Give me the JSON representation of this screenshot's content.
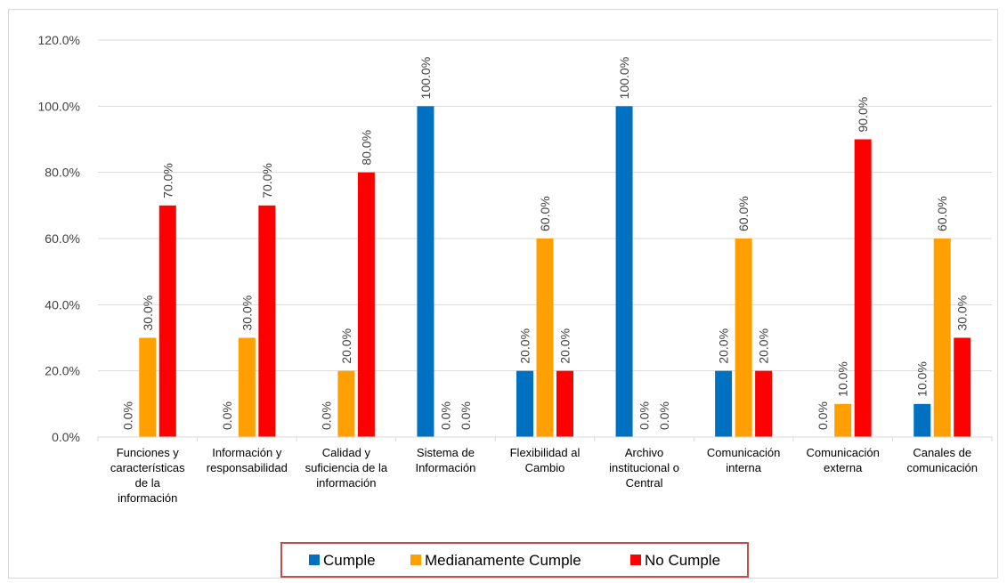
{
  "chart_data": {
    "type": "bar",
    "title": "",
    "xlabel": "",
    "ylabel": "",
    "ylim": [
      0,
      120
    ],
    "y_ticks": [
      "0.0%",
      "20.0%",
      "40.0%",
      "60.0%",
      "80.0%",
      "100.0%",
      "120.0%"
    ],
    "grid": true,
    "legend_position": "bottom",
    "categories": [
      [
        "Funciones y",
        "características",
        "de la",
        "información"
      ],
      [
        "Información y",
        "responsabilidad"
      ],
      [
        "Calidad y",
        "suficiencia de la",
        "información"
      ],
      [
        "Sistema de",
        "Información"
      ],
      [
        "Flexibilidad al",
        "Cambio"
      ],
      [
        "Archivo",
        "institucional o",
        "Central"
      ],
      [
        "Comunicación",
        "interna"
      ],
      [
        "Comunicación",
        "externa"
      ],
      [
        "Canales de",
        "comunicación"
      ]
    ],
    "series": [
      {
        "name": "Cumple",
        "color": "#0070c0",
        "values": [
          0,
          0,
          0,
          100,
          20,
          100,
          20,
          0,
          10
        ],
        "labels": [
          "0.0%",
          "0.0%",
          "0.0%",
          "100.0%",
          "20.0%",
          "100.0%",
          "20.0%",
          "0.0%",
          "10.0%"
        ]
      },
      {
        "name": "Medianamente Cumple",
        "color": "#ffa000",
        "values": [
          30,
          30,
          20,
          0,
          60,
          0,
          60,
          10,
          60
        ],
        "labels": [
          "30.0%",
          "30.0%",
          "20.0%",
          "0.0%",
          "60.0%",
          "0.0%",
          "60.0%",
          "10.0%",
          "60.0%"
        ]
      },
      {
        "name": "No Cumple",
        "color": "#ff0000",
        "values": [
          70,
          70,
          80,
          0,
          20,
          0,
          20,
          90,
          30
        ],
        "labels": [
          "70.0%",
          "70.0%",
          "80.0%",
          "0.0%",
          "20.0%",
          "0.0%",
          "20.0%",
          "90.0%",
          "30.0%"
        ]
      }
    ],
    "legend_border_color": "#c0504d"
  }
}
